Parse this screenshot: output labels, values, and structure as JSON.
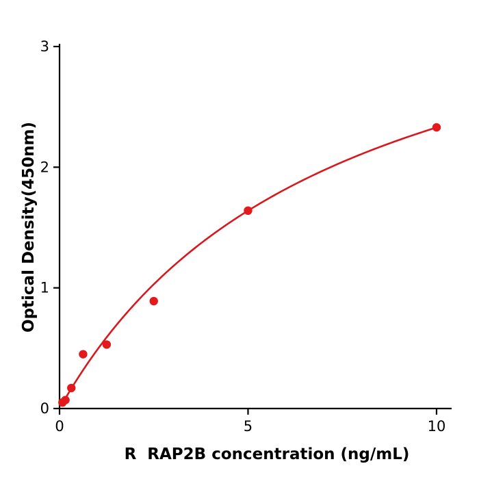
{
  "chart_data": {
    "type": "scatter",
    "title": "",
    "xlabel": "R  RAP2B concentration (ng/mL)",
    "ylabel": "Optical Density(450nm)",
    "xlim": [
      0,
      10.4
    ],
    "ylim": [
      0,
      3
    ],
    "x_ticks": [
      0,
      5,
      10
    ],
    "y_ticks": [
      0,
      1,
      2,
      3
    ],
    "grid": false,
    "legend": null,
    "point_color": "#e31a1c",
    "line_color": "#d8181c",
    "axis_color": "#000000",
    "points": {
      "x": [
        0.078,
        0.156,
        0.313,
        0.625,
        1.25,
        2.5,
        5,
        10
      ],
      "y": [
        0.05,
        0.07,
        0.17,
        0.45,
        0.53,
        0.89,
        1.64,
        2.33
      ]
    },
    "fit_curve": {
      "model": "saturation y = a*x/(b+x)",
      "a": 4.02,
      "b": 7.26,
      "x_start": 0.078,
      "x_end": 10
    }
  }
}
